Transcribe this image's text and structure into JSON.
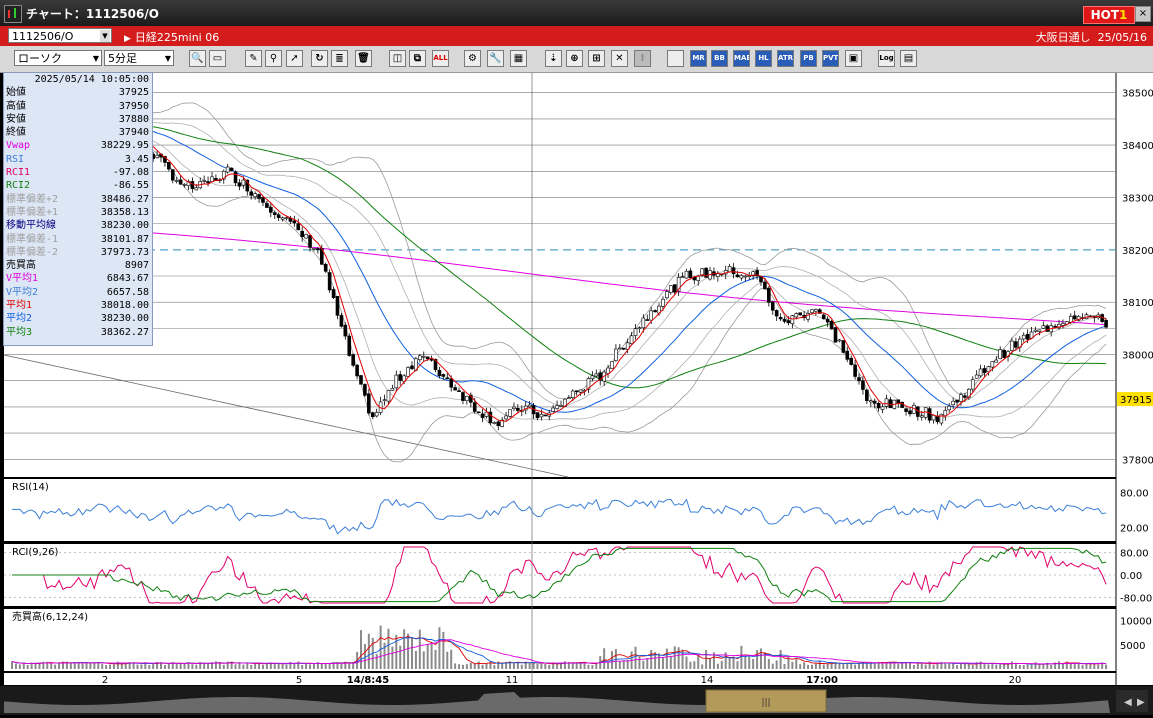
{
  "window": {
    "title": "チャート：1112506/O",
    "hot_badge": "HOT",
    "hot_num": "1"
  },
  "symbol_bar": {
    "code": "1112506/O",
    "name": "日経225mini 06",
    "market": "大阪日通し",
    "date": "25/05/16"
  },
  "toolbar": {
    "chart_type": "ローソク",
    "interval": "5分足",
    "icons": [
      "search-icon",
      "window-icon",
      "pen-icon",
      "draw-icon",
      "cursor-icon",
      "refresh-icon",
      "list-icon",
      "trash-icon",
      "split-icon",
      "merge-icon",
      "all-icon",
      "gear-icon",
      "wrench-icon",
      "palette-icon",
      "marker-icon",
      "zoom-icon",
      "fit-icon",
      "clear-icon",
      "hidden-icon",
      "ma-icon",
      "mr-icon",
      "bb-icon",
      "mae-icon",
      "hl-icon",
      "atr-icon",
      "pb-icon",
      "pvt-icon",
      "frame-icon",
      "log-icon",
      "save-icon"
    ],
    "icon_text": {
      "all": "ALL",
      "mr": "MR",
      "bb": "BB",
      "mae": "MAE",
      "hl": "HL",
      "atr": "ATR",
      "pb": "PB",
      "pvt": "PVT",
      "log": "Log"
    }
  },
  "info": {
    "datetime": "2025/05/14  10:05:00",
    "rows": [
      {
        "label": "始値",
        "value": "37925",
        "color": "#000000"
      },
      {
        "label": "高値",
        "value": "37950",
        "color": "#000000"
      },
      {
        "label": "安値",
        "value": "37880",
        "color": "#000000"
      },
      {
        "label": "終値",
        "value": "37940",
        "color": "#000000"
      },
      {
        "label": "Vwap",
        "value": "38229.95",
        "color": "#e000e0"
      },
      {
        "label": "RSI",
        "value": "3.45",
        "color": "#3a7fd8"
      },
      {
        "label": "RCI1",
        "value": "-97.08",
        "color": "#e0006a"
      },
      {
        "label": "RCI2",
        "value": "-86.55",
        "color": "#108010"
      },
      {
        "label": "標準偏差+2",
        "value": "38486.27",
        "color": "#a0a0a0"
      },
      {
        "label": "標準偏差+1",
        "value": "38358.13",
        "color": "#a0a0a0"
      },
      {
        "label": "移動平均線",
        "value": "38230.00",
        "color": "#000080"
      },
      {
        "label": "標準偏差-1",
        "value": "38101.87",
        "color": "#a0a0a0"
      },
      {
        "label": "標準偏差-2",
        "value": "37973.73",
        "color": "#a0a0a0"
      },
      {
        "label": "売買高",
        "value": "8907",
        "color": "#000000"
      },
      {
        "label": "V平均1",
        "value": "6843.67",
        "color": "#e000e0"
      },
      {
        "label": "V平均2",
        "value": "6657.58",
        "color": "#3a7fd8"
      },
      {
        "label": "平均1",
        "value": "38018.00",
        "color": "#e00000"
      },
      {
        "label": "平均2",
        "value": "38230.00",
        "color": "#1060e0"
      },
      {
        "label": "平均3",
        "value": "38362.27",
        "color": "#108010"
      }
    ]
  },
  "panels": {
    "rsi_label": "RSI(14)",
    "rci_label": "RCI(9,26)",
    "vol_label": "売買高(6,12,24)"
  },
  "chart_data": {
    "type": "candlestick",
    "price_axis": {
      "ticks": [
        "38500",
        "38400",
        "38300",
        "38200",
        "38100",
        "38000",
        "37800"
      ],
      "ylim": [
        37770,
        38530
      ]
    },
    "current_price": "37915",
    "dashed_level": 38200,
    "x_ticks": [
      "2",
      "5",
      "14/8:45",
      "11",
      "14",
      "17:00",
      "20"
    ],
    "rsi_axis": [
      "80.00",
      "20.00"
    ],
    "rci_axis": [
      "80.00",
      "0.00",
      "-80.00"
    ],
    "vol_axis": [
      "10000",
      "5000"
    ],
    "close_keypoints": [
      [
        0,
        38470
      ],
      [
        12,
        38440
      ],
      [
        20,
        38420
      ],
      [
        28,
        38450
      ],
      [
        35,
        38390
      ],
      [
        44,
        38320
      ],
      [
        48,
        38320
      ],
      [
        55,
        38350
      ],
      [
        60,
        38320
      ],
      [
        68,
        38270
      ],
      [
        78,
        38200
      ],
      [
        88,
        37950
      ],
      [
        92,
        37880
      ],
      [
        98,
        37950
      ],
      [
        104,
        38000
      ],
      [
        110,
        37960
      ],
      [
        118,
        37900
      ],
      [
        124,
        37870
      ],
      [
        130,
        37900
      ],
      [
        136,
        37880
      ],
      [
        142,
        37920
      ],
      [
        150,
        37960
      ],
      [
        158,
        38040
      ],
      [
        166,
        38110
      ],
      [
        172,
        38150
      ],
      [
        182,
        38160
      ],
      [
        190,
        38150
      ],
      [
        196,
        38060
      ],
      [
        205,
        38090
      ],
      [
        212,
        38010
      ],
      [
        218,
        37910
      ],
      [
        228,
        37900
      ],
      [
        236,
        37880
      ],
      [
        242,
        37920
      ],
      [
        250,
        37990
      ],
      [
        258,
        38030
      ],
      [
        266,
        38060
      ],
      [
        272,
        38080
      ],
      [
        279,
        38060
      ]
    ],
    "bars": 280
  }
}
